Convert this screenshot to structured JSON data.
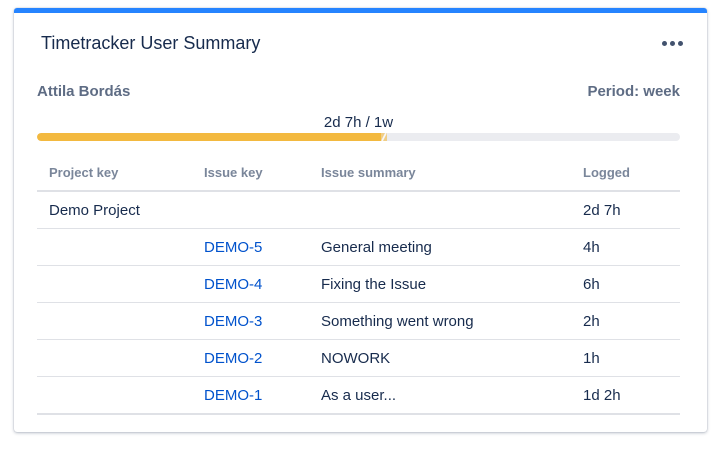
{
  "gadget": {
    "title": "Timetracker User Summary",
    "accent_color": "#2684ff",
    "menu_icon": "more-horizontal-icon"
  },
  "summary": {
    "user": "Attila Bordás",
    "period": "Period: week",
    "progress_text": "2d 7h / 1w",
    "progress_fraction": 0.535,
    "progress_color": "#f3b93f"
  },
  "table": {
    "headers": {
      "project_key": "Project key",
      "issue_key": "Issue key",
      "issue_summary": "Issue summary",
      "logged": "Logged"
    },
    "project_row": {
      "project": "Demo Project",
      "logged": "2d 7h"
    },
    "rows": [
      {
        "key": "DEMO-5",
        "summary": "General meeting",
        "logged": "4h"
      },
      {
        "key": "DEMO-4",
        "summary": "Fixing the Issue",
        "logged": "6h"
      },
      {
        "key": "DEMO-3",
        "summary": "Something went wrong",
        "logged": "2h"
      },
      {
        "key": "DEMO-2",
        "summary": "NOWORK",
        "logged": "1h"
      },
      {
        "key": "DEMO-1",
        "summary": "As a user...",
        "logged": "1d 2h"
      }
    ]
  }
}
